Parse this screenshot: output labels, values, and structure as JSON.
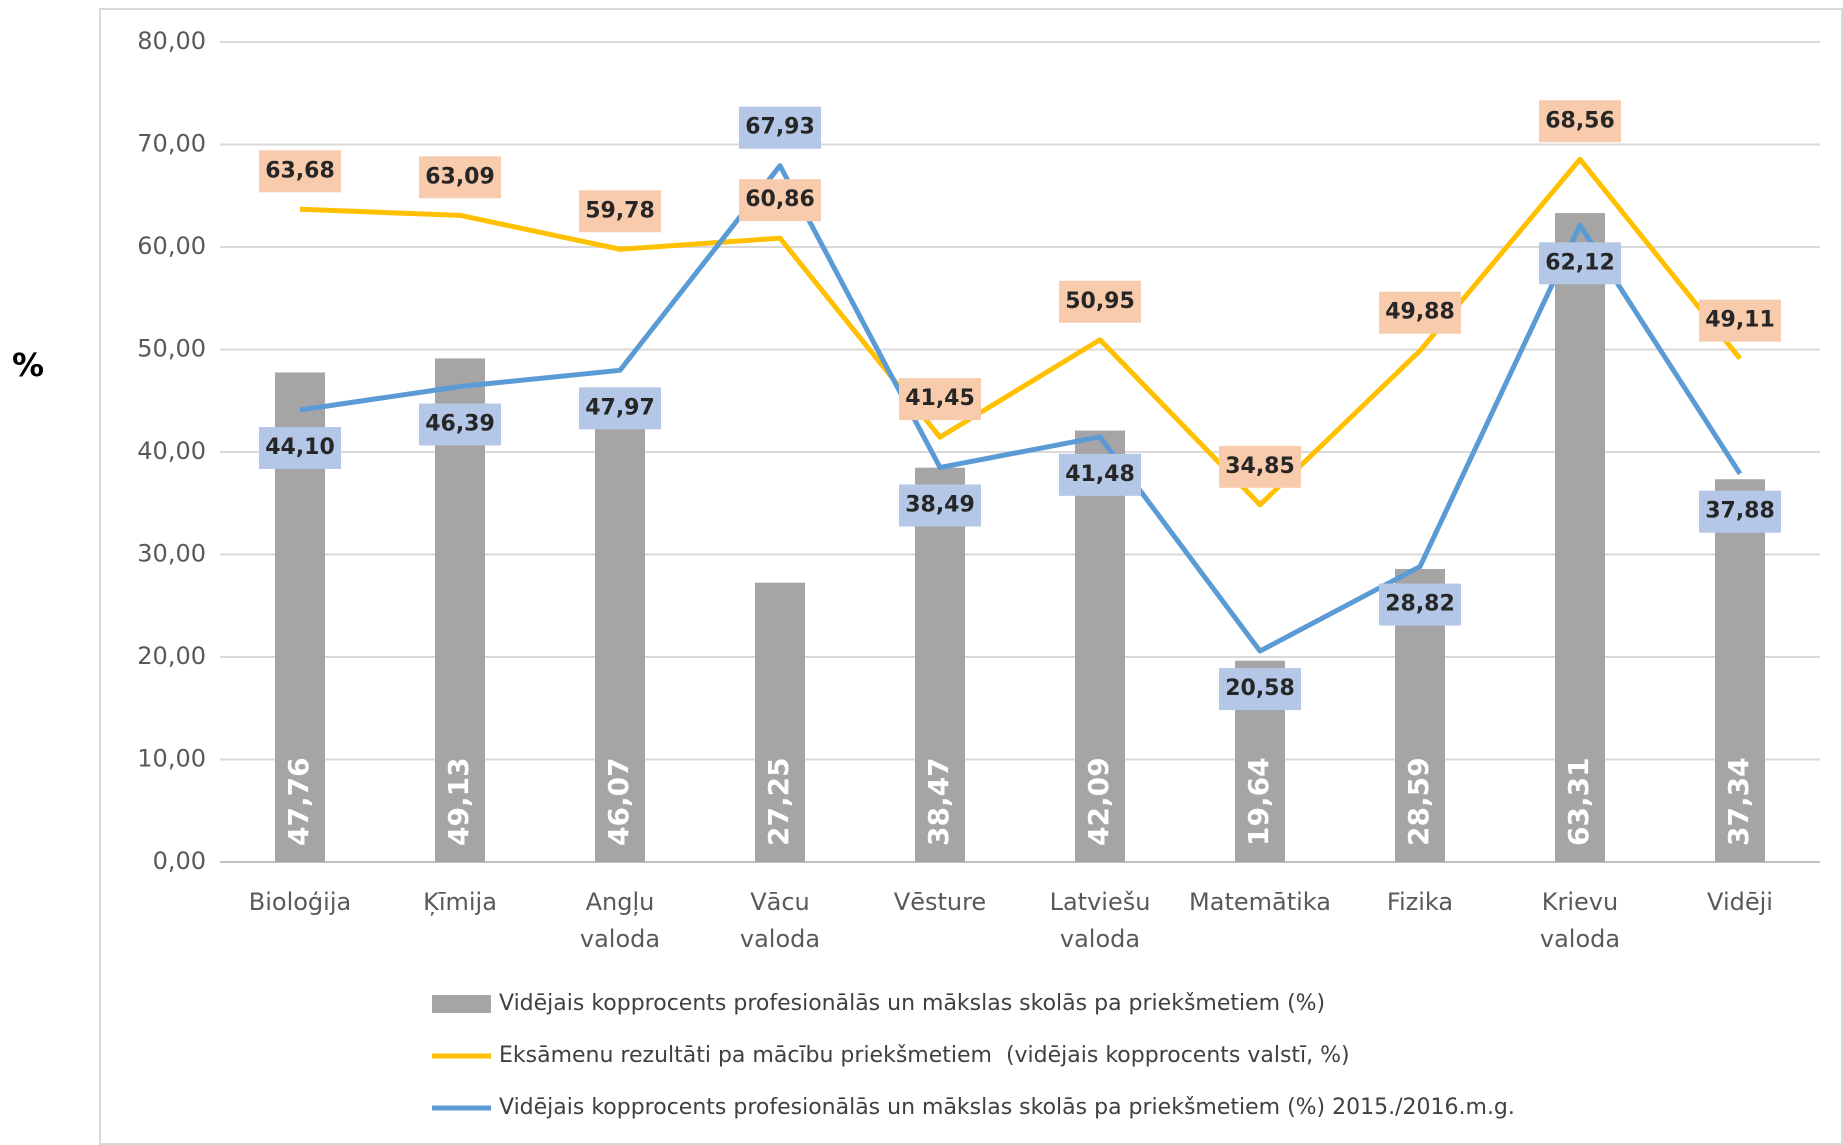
{
  "chart_data": {
    "type": "bar_line",
    "y_label": "%",
    "categories": [
      "Bioloģija",
      "Ķīmija",
      "Angļu valoda",
      "Vācu valoda",
      "Vēsture",
      "Latviešu valoda",
      "Matemātika",
      "Fizika",
      "Krievu valoda",
      "Vidēji"
    ],
    "ylim": [
      0,
      80
    ],
    "yticks": [
      {
        "value": 0,
        "label": "0,00"
      },
      {
        "value": 10,
        "label": "10,00"
      },
      {
        "value": 20,
        "label": "20,00"
      },
      {
        "value": 30,
        "label": "30,00"
      },
      {
        "value": 40,
        "label": "40,00"
      },
      {
        "value": 50,
        "label": "50,00"
      },
      {
        "value": 60,
        "label": "60,00"
      },
      {
        "value": 70,
        "label": "70,00"
      },
      {
        "value": 80,
        "label": "80,00"
      }
    ],
    "grid": true,
    "legend": "bottom",
    "series": [
      {
        "name": "Vidējais kopprocents profesionālās un mākslas skolās pa priekšmetiem (%)",
        "type": "bar",
        "color": "#a5a5a5",
        "values": [
          47.76,
          49.13,
          46.07,
          27.25,
          38.47,
          42.09,
          19.64,
          28.59,
          63.31,
          37.34
        ],
        "value_labels": [
          "47,76",
          "49,13",
          "46,07",
          "27,25",
          "38,47",
          "42,09",
          "19,64",
          "28,59",
          "63,31",
          "37,34"
        ]
      },
      {
        "name": "Eksāmenu rezultāti pa mācību priekšmetiem  (vidējais kopprocents valstī, %)",
        "type": "line",
        "color": "#ffc000",
        "label_color": "#f8cbad",
        "values": [
          63.68,
          63.09,
          59.78,
          60.86,
          41.45,
          50.95,
          34.85,
          49.88,
          68.56,
          49.11
        ],
        "value_labels": [
          "63,68",
          "63,09",
          "59,78",
          "60,86",
          "41,45",
          "50,95",
          "34,85",
          "49,88",
          "68,56",
          "49,11"
        ]
      },
      {
        "name": "Vidējais kopprocents profesionālās un mākslas skolās pa priekšmetiem (%) 2015./2016.m.g.",
        "type": "line",
        "color": "#5b9bd5",
        "label_color": "#b4c7e7",
        "values": [
          44.1,
          46.39,
          47.97,
          67.93,
          38.49,
          41.48,
          20.58,
          28.82,
          62.12,
          37.88
        ],
        "value_labels": [
          "44,10",
          "46,39",
          "47,97",
          "67,93",
          "38,49",
          "41,48",
          "20,58",
          "28,82",
          "62,12",
          "37,88"
        ]
      }
    ]
  }
}
